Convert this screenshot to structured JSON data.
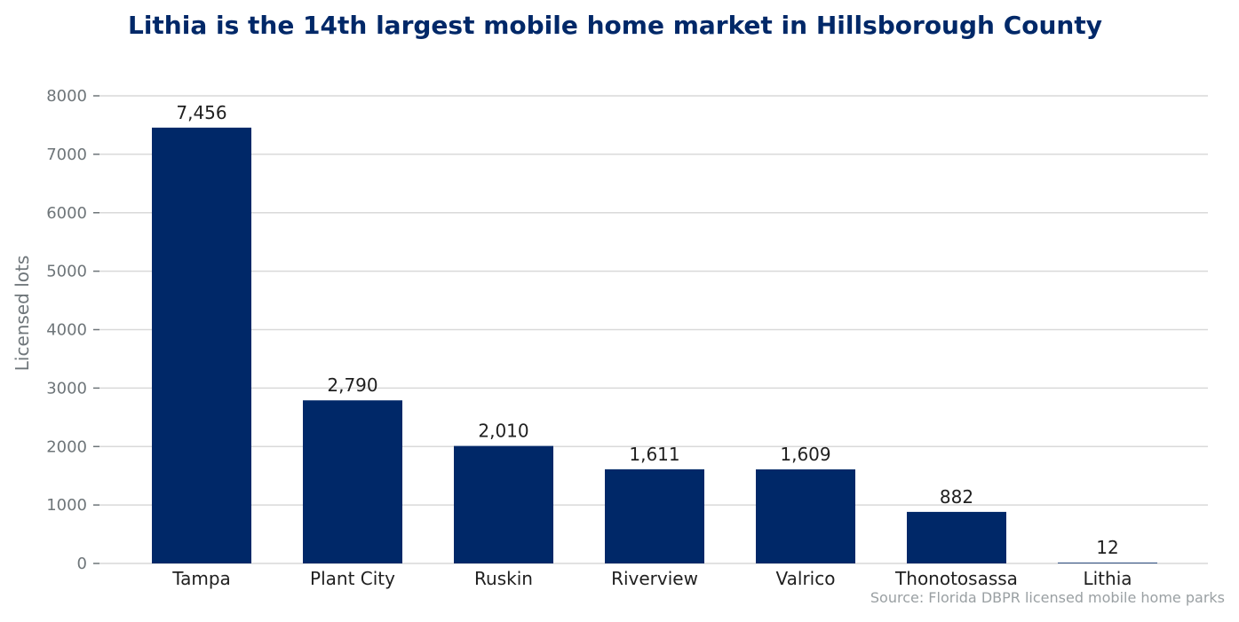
{
  "chart_data": {
    "type": "bar",
    "title": "Lithia is the 14th largest mobile home market in Hillsborough County",
    "xlabel": "",
    "ylabel": "Licensed lots",
    "source": "Source: Florida DBPR licensed mobile home parks",
    "categories": [
      "Tampa",
      "Plant City",
      "Ruskin",
      "Riverview",
      "Valrico",
      "Thonotosassa",
      "Lithia"
    ],
    "values": [
      7456,
      2790,
      2010,
      1611,
      1609,
      882,
      12
    ],
    "value_labels": [
      "7,456",
      "2,790",
      "2,010",
      "1,611",
      "1,609",
      "882",
      "12"
    ],
    "yticks": [
      0,
      1000,
      2000,
      3000,
      4000,
      5000,
      6000,
      7000,
      8000
    ],
    "ylim": [
      0,
      8000
    ],
    "grid": true,
    "legend": "none",
    "colors": {
      "bar": "#002868",
      "title": "#002868",
      "grid": "#d9d9d9",
      "axis_text": "#6e7579",
      "source": "#9aa0a3"
    }
  }
}
